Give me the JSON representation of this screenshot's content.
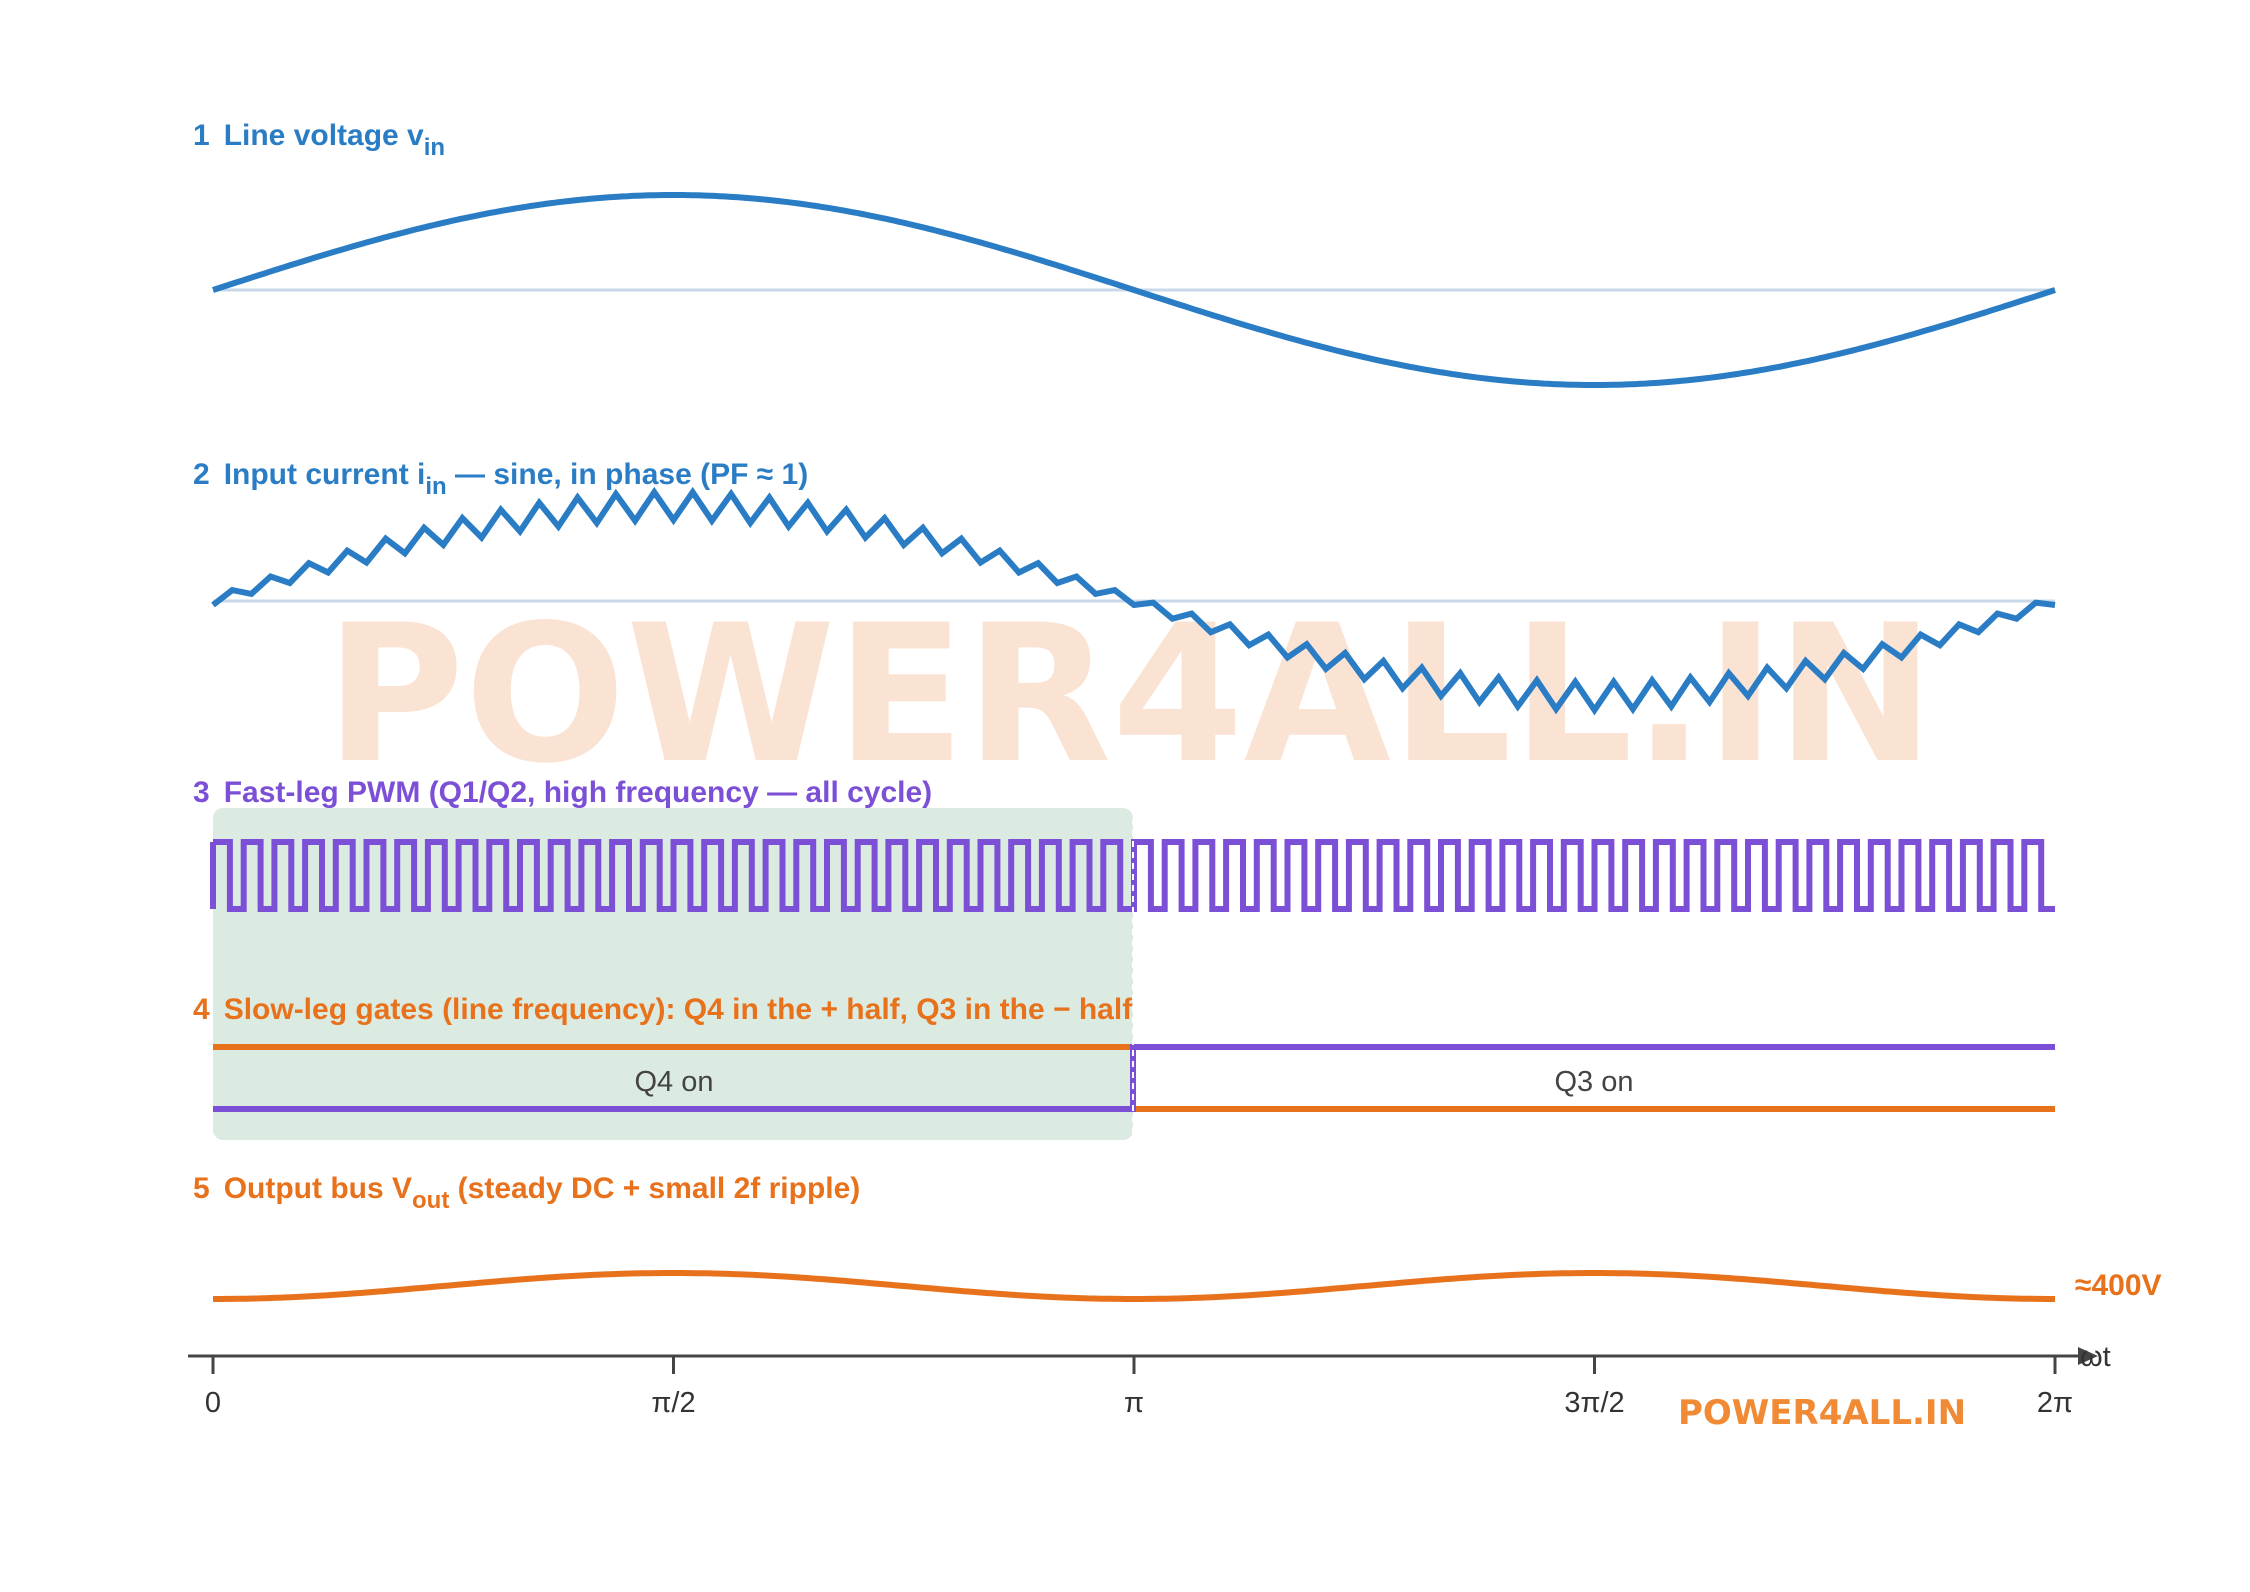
{
  "panels": {
    "p1": {
      "num": "1",
      "title": "Line voltage  v",
      "sub": "in",
      "tail": "",
      "color": "#2a7dc4"
    },
    "p2": {
      "num": "2",
      "title": "Input current  i",
      "sub": "in",
      "tail": " — sine, in phase (PF ≈ 1)",
      "color": "#2a7dc4"
    },
    "p3": {
      "num": "3",
      "title": "Fast-leg PWM (Q1/Q2, high frequency — all cycle)",
      "color": "#7b4fd6"
    },
    "p4": {
      "num": "4",
      "title": "Slow-leg gates (line frequency): Q4 in the + half, Q3 in the − half",
      "color": "#e8711c"
    },
    "p5": {
      "num": "5",
      "title": "Output bus  V",
      "sub": "out",
      "tail": " (steady DC + small 2f ripple)",
      "color": "#e8711c"
    }
  },
  "state_labels": {
    "q4": "Q4 on",
    "q3": "Q3 on"
  },
  "vout_label": "≈400V",
  "axis": {
    "ticks": [
      "0",
      "π/2",
      "π",
      "3π/2",
      "2π"
    ],
    "xlabel": "ωt"
  },
  "watermark": {
    "main": "POWER4ALL.IN",
    "small": "POWER4ALL.IN"
  },
  "colors": {
    "blue": "#2a7dc4",
    "purple": "#7b4fd6",
    "orange": "#e8711c",
    "baseline": "#c8d8ea",
    "highlight": "#dcebe1",
    "axis": "#444444",
    "watermark": "#fbe3d3"
  },
  "chart_data": {
    "x_domain": [
      "0",
      "2π"
    ],
    "pwm_cycles": 60,
    "current_ripple_teeth": 48,
    "vout_ripple": "2f",
    "highlight_region": [
      "0",
      "π"
    ]
  }
}
